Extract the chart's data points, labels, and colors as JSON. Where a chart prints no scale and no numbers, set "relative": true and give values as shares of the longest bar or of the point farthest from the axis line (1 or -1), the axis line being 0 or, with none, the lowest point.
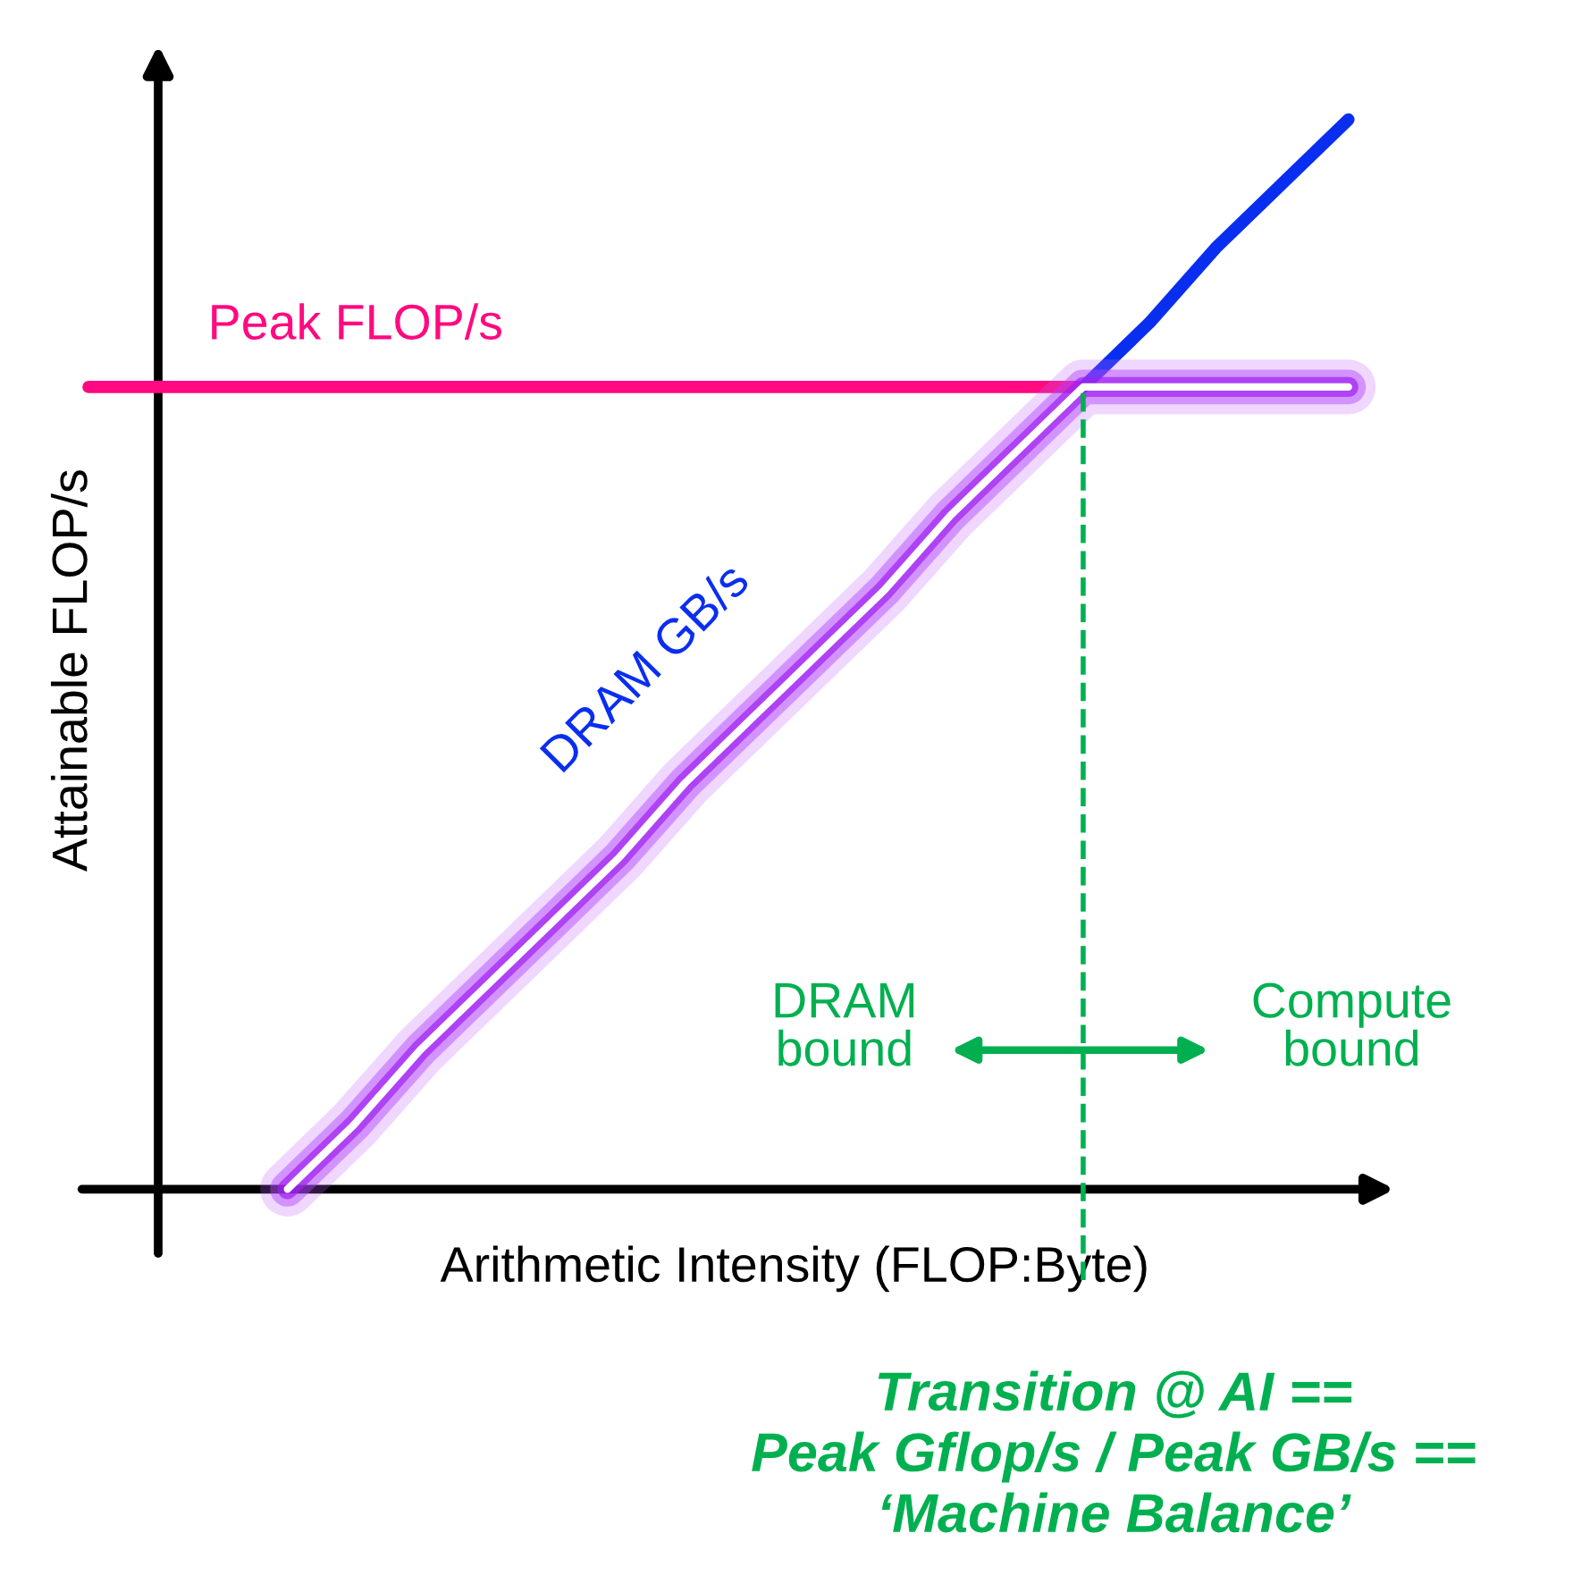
{
  "chart_data": {
    "type": "line",
    "relative": true,
    "xlabel": "Arithmetic Intensity (FLOP:Byte)",
    "ylabel": "Attainable FLOP/s",
    "categories": [
      null,
      null,
      null,
      null,
      null,
      null,
      null,
      null,
      null,
      null,
      null,
      null,
      null,
      null,
      null,
      null,
      null,
      null,
      null,
      null
    ],
    "series": [
      {
        "name": "Peak FLOP/s",
        "color": "#ff0a80",
        "values": [
          0.75,
          0.75,
          0.75,
          0.75,
          0.75,
          0.75,
          0.75,
          0.75,
          0.75,
          0.75,
          0.75,
          0.75,
          0.75,
          0.75,
          0.75,
          0.75,
          null,
          null,
          null,
          null
        ]
      },
      {
        "name": "DRAM GB/s",
        "color": "#0a2ef0",
        "values": [
          null,
          null,
          null,
          null,
          null,
          null,
          null,
          null,
          null,
          null,
          null,
          null,
          null,
          null,
          null,
          0.75,
          0.81,
          0.88,
          0.94,
          1
        ]
      },
      {
        "color": "#ffffff",
        "values": [
          null,
          null,
          null,
          0,
          0.06,
          0.13,
          0.19,
          0.25,
          0.31,
          0.38,
          0.44,
          0.5,
          0.56,
          0.63,
          0.69,
          0.75,
          0.75,
          0.75,
          0.75,
          0.75
        ]
      }
    ],
    "annotations": [
      "DRAM\nbound",
      "Compute\nbound",
      "Transition @ AI ==\nPeak Gflop/s / Peak GB/s ==\n‘Machine Balance’"
    ],
    "legend": false,
    "marker": "none",
    "line_style": "solid",
    "grid": false
  }
}
